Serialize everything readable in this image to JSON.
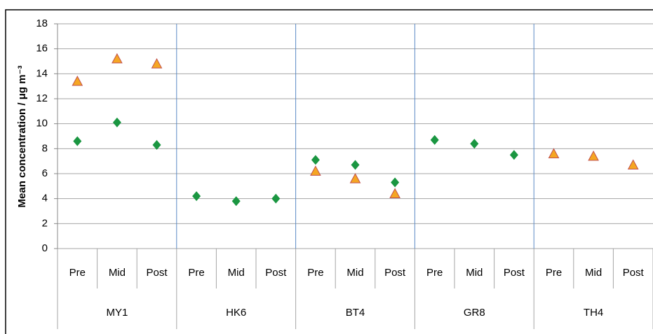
{
  "chart_data": {
    "type": "scatter",
    "y_label": "Mean concentration / μg m⁻³",
    "groups": [
      "MY1",
      "HK6",
      "BT4",
      "GR8",
      "TH4"
    ],
    "categories": [
      "Pre",
      "Mid",
      "Post",
      "Pre",
      "Mid",
      "Post",
      "Pre",
      "Mid",
      "Post",
      "Pre",
      "Mid",
      "Post",
      "Pre",
      "Mid",
      "Post"
    ],
    "series": [
      {
        "color": "#1a9641",
        "marker": "diamond",
        "values": [
          8.6,
          10.1,
          8.3,
          4.2,
          3.8,
          4.0,
          7.1,
          6.7,
          5.3,
          8.7,
          8.4,
          7.5,
          null,
          null,
          null
        ]
      },
      {
        "color": "#f5a623",
        "marker": "triangle",
        "values": [
          13.4,
          15.2,
          14.8,
          null,
          null,
          null,
          6.2,
          5.6,
          4.4,
          null,
          null,
          null,
          7.6,
          7.4,
          6.7
        ]
      }
    ],
    "ylim": [
      0,
      18
    ],
    "yticks": [
      0,
      2,
      4,
      6,
      8,
      10,
      12,
      14,
      16,
      18
    ],
    "grid": true
  }
}
